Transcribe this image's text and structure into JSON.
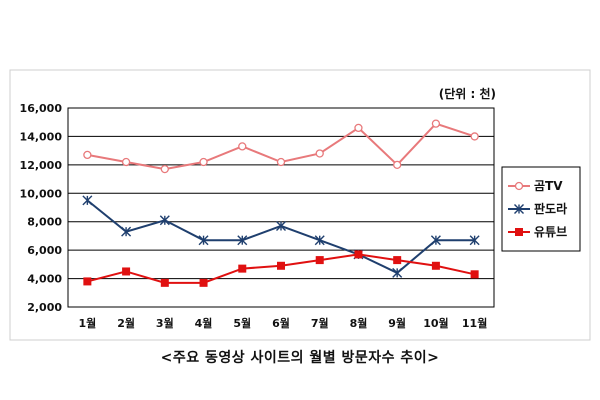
{
  "chart_data": {
    "type": "line",
    "unit_label": "(단위 : 천)",
    "categories": [
      "1월",
      "2월",
      "3월",
      "4월",
      "5월",
      "6월",
      "7월",
      "8월",
      "9월",
      "10월",
      "11월"
    ],
    "y_ticks": [
      "2,000",
      "4,000",
      "6,000",
      "8,000",
      "10,000",
      "12,000",
      "14,000",
      "16,000"
    ],
    "ylim": [
      2000,
      16000
    ],
    "grid": "horizontal",
    "legend_position": "right",
    "series": [
      {
        "name": "곰TV",
        "color": "#e8797b",
        "marker": "circle-open",
        "values": [
          12700,
          12200,
          11700,
          12200,
          13300,
          12200,
          12800,
          14600,
          12000,
          14900,
          14000
        ]
      },
      {
        "name": "판도라",
        "color": "#1f3f6e",
        "marker": "asterisk",
        "values": [
          9500,
          7300,
          8100,
          6700,
          6700,
          7700,
          6700,
          5700,
          4400,
          6700,
          6700
        ]
      },
      {
        "name": "유튜브",
        "color": "#e01010",
        "marker": "square",
        "values": [
          3800,
          4500,
          3700,
          3700,
          4700,
          4900,
          5300,
          5700,
          5300,
          4900,
          4300
        ]
      }
    ]
  },
  "caption": "<주요 동영상 사이트의 월별 방문자수 추이>"
}
